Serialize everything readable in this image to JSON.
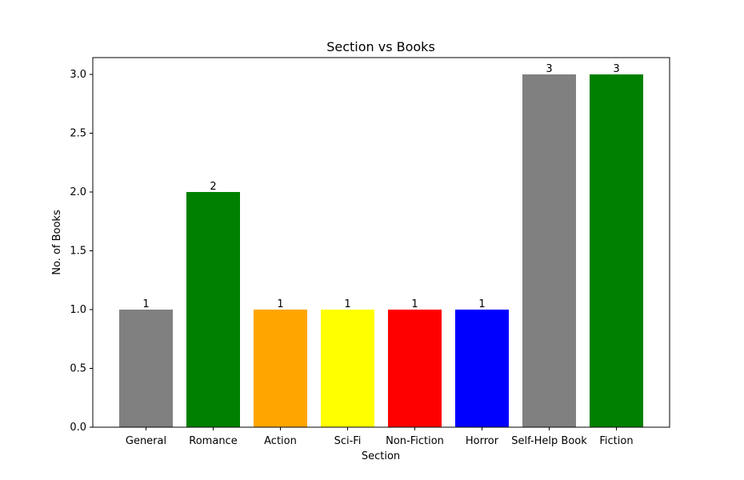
{
  "chart_data": {
    "type": "bar",
    "title": "Section vs Books",
    "xlabel": "Section",
    "ylabel": "No. of Books",
    "categories": [
      "General",
      "Romance",
      "Action",
      "Sci-Fi",
      "Non-Fiction",
      "Horror",
      "Self-Help Book",
      "Fiction"
    ],
    "values": [
      1,
      2,
      1,
      1,
      1,
      1,
      3,
      3
    ],
    "data_labels": [
      "1",
      "2",
      "1",
      "1",
      "1",
      "1",
      "3",
      "3"
    ],
    "colors": [
      "#808080",
      "#008000",
      "#ffa500",
      "#ffff00",
      "#ff0000",
      "#0000ff",
      "#808080",
      "#008000"
    ],
    "ylim": [
      0,
      3.15
    ],
    "yticks": [
      0,
      0.5,
      1,
      1.5,
      2,
      2.5,
      3
    ],
    "ytick_labels": [
      "0.0",
      "0.5",
      "1.0",
      "1.5",
      "2.0",
      "2.5",
      "3.0"
    ],
    "grid": false,
    "legend": "none"
  }
}
